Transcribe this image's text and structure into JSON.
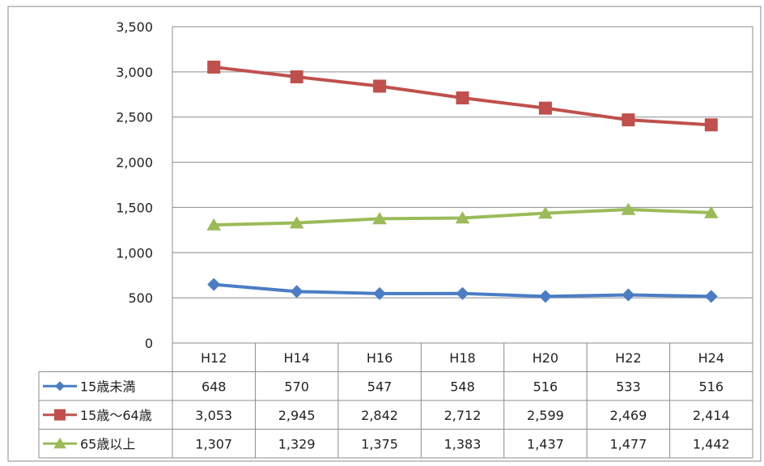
{
  "chart_data": {
    "type": "line",
    "categories": [
      "H12",
      "H14",
      "H16",
      "H18",
      "H20",
      "H22",
      "H24"
    ],
    "ylim": [
      0,
      3500
    ],
    "yticks": [
      0,
      500,
      1000,
      1500,
      2000,
      2500,
      3000,
      3500
    ],
    "ytick_labels": [
      "0",
      "500",
      "1,000",
      "1,500",
      "2,000",
      "2,500",
      "3,000",
      "3,500"
    ],
    "grid": true,
    "legend_placement": "data-table-left",
    "series": [
      {
        "name": "15歳未満",
        "color": "#4a7dc4",
        "marker": "diamond",
        "values": [
          648,
          570,
          547,
          548,
          516,
          533,
          516
        ],
        "labels": [
          "648",
          "570",
          "547",
          "548",
          "516",
          "533",
          "516"
        ]
      },
      {
        "name": "15歳～64歳",
        "color": "#c0504d",
        "marker": "square",
        "values": [
          3053,
          2945,
          2842,
          2712,
          2599,
          2469,
          2414
        ],
        "labels": [
          "3,053",
          "2,945",
          "2,842",
          "2,712",
          "2,599",
          "2,469",
          "2,414"
        ]
      },
      {
        "name": "65歳以上",
        "color": "#9bbb59",
        "marker": "triangle",
        "values": [
          1307,
          1329,
          1375,
          1383,
          1437,
          1477,
          1442
        ],
        "labels": [
          "1,307",
          "1,329",
          "1,375",
          "1,383",
          "1,437",
          "1,477",
          "1,442"
        ]
      }
    ]
  }
}
